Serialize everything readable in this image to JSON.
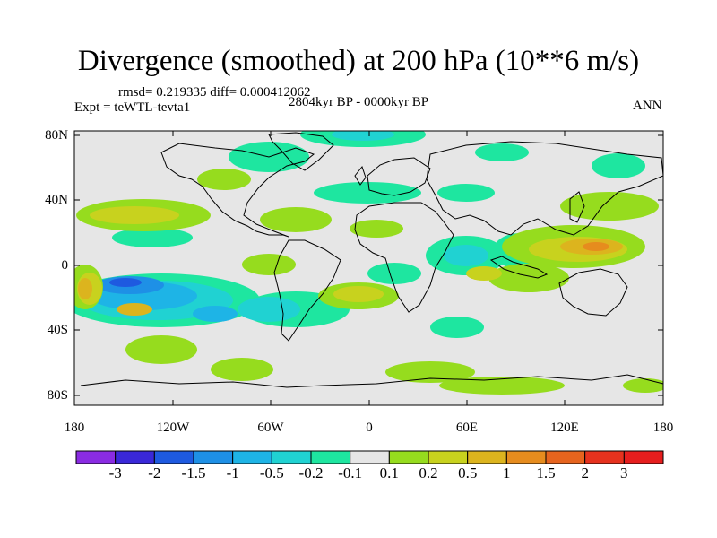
{
  "title": "Divergence (smoothed) at 200 hPa (10**6 m/s)",
  "stats_line": "rmsd= 0.219335 diff= 0.000412062",
  "experiment_label": "Expt = teWTL-tevta1",
  "period_label": "2804kyr BP - 0000kyr BP",
  "season_label": "ANN",
  "map": {
    "projection": "cylindrical equidistant",
    "background_color": "#e6e6e6",
    "lat_ticks": [
      "80N",
      "40N",
      "0",
      "40S",
      "80S"
    ],
    "lon_ticks": [
      "180",
      "120W",
      "60W",
      "0",
      "60E",
      "120E",
      "180"
    ]
  },
  "colorbar": {
    "labels": [
      "-3",
      "-2",
      "-1.5",
      "-1",
      "-0.5",
      "-0.2",
      "-0.1",
      "0.1",
      "0.2",
      "0.5",
      "1",
      "1.5",
      "2",
      "3"
    ],
    "colors": [
      "#8a2be2",
      "#3a28d8",
      "#1e5ae0",
      "#1e90e6",
      "#1eb4e6",
      "#20d2d2",
      "#1ee6a0",
      "#e6e6e6",
      "#96dc1e",
      "#c8d21e",
      "#dcb41e",
      "#e68c1e",
      "#e6641e",
      "#e6321e",
      "#e61e1e"
    ]
  }
}
